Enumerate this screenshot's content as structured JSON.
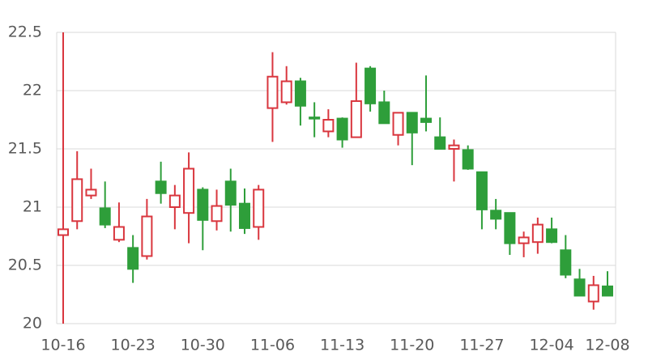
{
  "chart_data": {
    "type": "candlestick",
    "categories": [
      "10-16",
      null,
      null,
      null,
      null,
      "10-23",
      null,
      null,
      null,
      null,
      "10-30",
      null,
      null,
      null,
      null,
      "11-06",
      null,
      null,
      null,
      null,
      "11-13",
      null,
      null,
      null,
      null,
      "11-20",
      null,
      null,
      null,
      null,
      "11-27",
      null,
      null,
      null,
      null,
      "12-04",
      null,
      null,
      null,
      "12-08"
    ],
    "open": [
      20.76,
      20.88,
      21.1,
      20.99,
      20.72,
      20.65,
      20.58,
      21.22,
      21.0,
      20.95,
      21.15,
      20.88,
      21.22,
      21.03,
      20.83,
      21.85,
      21.9,
      22.08,
      21.77,
      21.65,
      21.76,
      21.6,
      22.19,
      21.9,
      21.62,
      21.81,
      21.76,
      21.6,
      21.5,
      21.49,
      21.3,
      20.97,
      20.95,
      20.69,
      20.7,
      20.81,
      20.63,
      20.38,
      20.19,
      20.32
    ],
    "high": [
      22.5,
      21.48,
      21.33,
      21.22,
      21.04,
      20.76,
      21.07,
      21.39,
      21.19,
      21.47,
      21.17,
      21.15,
      21.33,
      21.16,
      21.19,
      22.33,
      22.21,
      22.11,
      21.9,
      21.84,
      21.77,
      22.24,
      22.21,
      22.0,
      21.81,
      21.81,
      22.13,
      21.77,
      21.58,
      21.53,
      21.3,
      21.07,
      20.95,
      20.79,
      20.91,
      20.91,
      20.76,
      20.47,
      20.41,
      20.45
    ],
    "low": [
      20.0,
      20.81,
      21.07,
      20.82,
      20.7,
      20.35,
      20.55,
      21.03,
      20.81,
      20.69,
      20.63,
      20.8,
      20.79,
      20.77,
      20.72,
      21.56,
      21.88,
      21.7,
      21.6,
      21.6,
      21.51,
      21.6,
      21.82,
      21.72,
      21.53,
      21.36,
      21.65,
      21.5,
      21.22,
      21.32,
      20.81,
      20.81,
      20.59,
      20.57,
      20.6,
      20.69,
      20.39,
      20.24,
      20.12,
      20.24
    ],
    "close": [
      20.81,
      21.24,
      21.15,
      20.85,
      20.83,
      20.47,
      20.92,
      21.12,
      21.1,
      21.33,
      20.89,
      21.01,
      21.02,
      20.82,
      21.15,
      22.12,
      22.08,
      21.87,
      21.76,
      21.75,
      21.58,
      21.91,
      21.89,
      21.72,
      21.81,
      21.64,
      21.73,
      21.5,
      21.53,
      21.33,
      20.98,
      20.9,
      20.69,
      20.74,
      20.85,
      20.7,
      20.42,
      20.24,
      20.33,
      20.24
    ],
    "up_color": "#d9363e",
    "down_color": "#2e9e3a",
    "ylim": [
      20,
      22.5
    ],
    "yticks": [
      20,
      20.5,
      21,
      21.5,
      22,
      22.5
    ],
    "grid": true
  }
}
